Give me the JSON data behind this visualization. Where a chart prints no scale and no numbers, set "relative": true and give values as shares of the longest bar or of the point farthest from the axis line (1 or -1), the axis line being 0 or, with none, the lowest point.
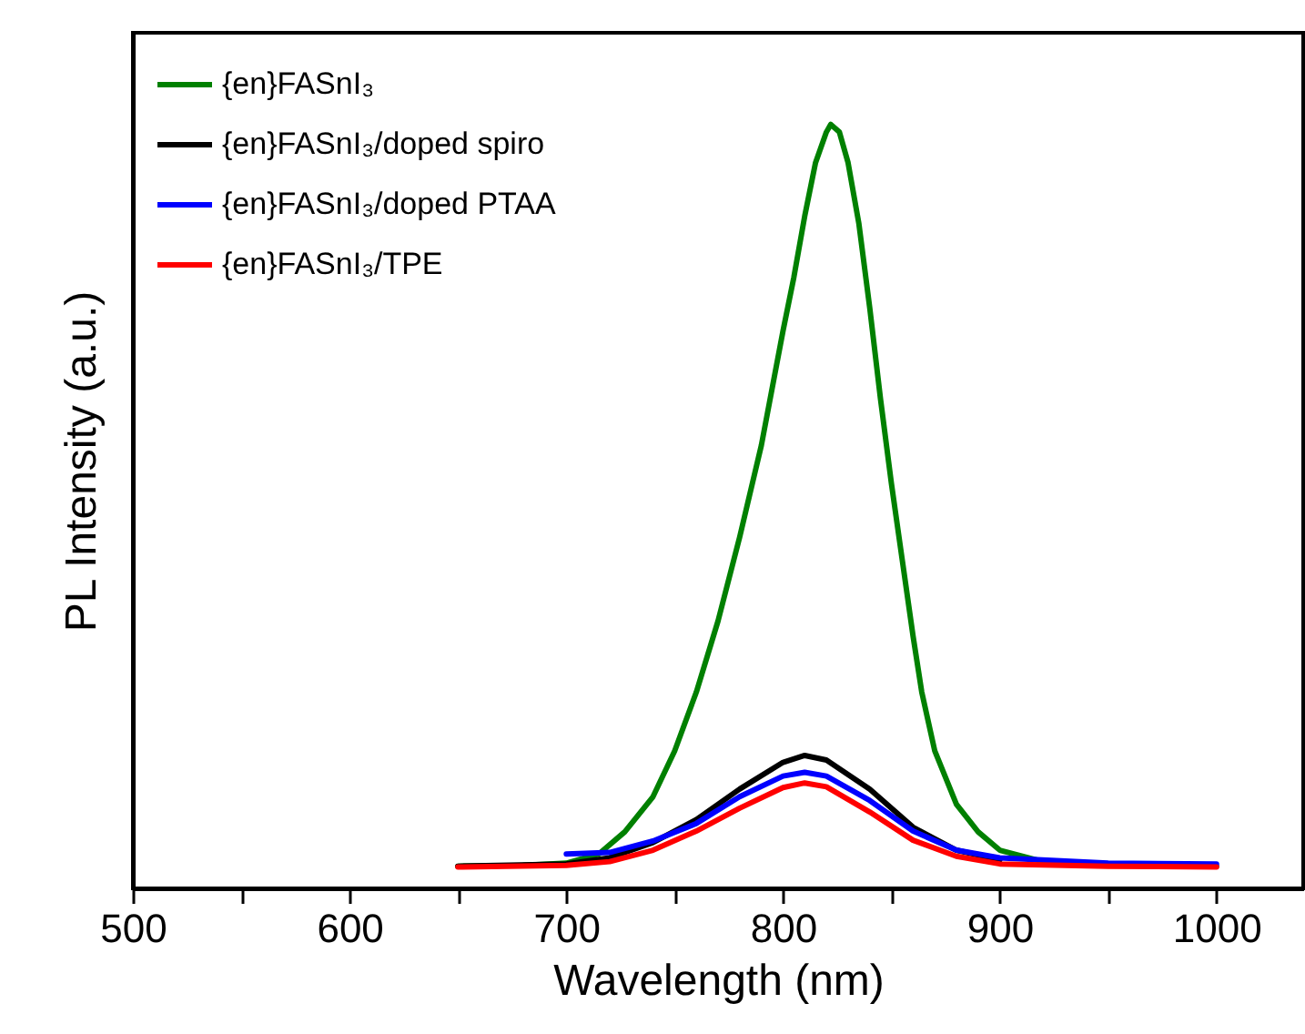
{
  "chart_data": {
    "type": "line",
    "relative": true,
    "xlabel": "Wavelength (nm)",
    "ylabel": "PL Intensity (a.u.)",
    "xlim": [
      500,
      1040
    ],
    "xticks": [
      500,
      {
        "value": 550,
        "label": null
      },
      600,
      {
        "value": 650,
        "label": null
      },
      700,
      {
        "value": 750,
        "label": null
      },
      800,
      {
        "value": 850,
        "label": null
      },
      900,
      {
        "value": 950,
        "label": null
      },
      1000
    ],
    "legend": "top left",
    "grid": false,
    "series": [
      {
        "name": "{en}FASnI₃",
        "color": "#008000",
        "x": [
          650,
          680,
          700,
          715,
          727,
          740,
          750,
          760,
          770,
          780,
          790,
          800,
          805,
          810,
          815,
          820,
          822,
          826,
          830,
          835,
          840,
          845,
          850,
          855,
          860,
          864,
          870,
          880,
          890,
          900,
          920,
          950,
          1000
        ],
        "values": [
          0.029,
          0.03,
          0.033,
          0.045,
          0.074,
          0.12,
          0.18,
          0.257,
          0.35,
          0.46,
          0.58,
          0.73,
          0.8,
          0.88,
          0.95,
          0.99,
          1.0,
          0.99,
          0.95,
          0.87,
          0.76,
          0.64,
          0.53,
          0.43,
          0.33,
          0.257,
          0.18,
          0.11,
          0.074,
          0.05,
          0.035,
          0.03,
          0.029
        ]
      },
      {
        "name": "{en}FASnI₃/doped spiro",
        "color": "#000000",
        "x": [
          650,
          700,
          720,
          740,
          760,
          780,
          800,
          810,
          820,
          840,
          860,
          880,
          900
        ],
        "values": [
          0.029,
          0.032,
          0.04,
          0.06,
          0.09,
          0.13,
          0.165,
          0.174,
          0.168,
          0.13,
          0.08,
          0.05,
          0.037
        ]
      },
      {
        "name": "{en}FASnI₃/doped PTAA",
        "color": "#0000ff",
        "x": [
          700,
          720,
          740,
          760,
          780,
          800,
          810,
          820,
          840,
          860,
          880,
          900,
          950,
          1000
        ],
        "values": [
          0.045,
          0.047,
          0.062,
          0.085,
          0.12,
          0.147,
          0.152,
          0.147,
          0.115,
          0.075,
          0.05,
          0.04,
          0.033,
          0.032
        ]
      },
      {
        "name": "{en}FASnI₃/TPE",
        "color": "#ff0000",
        "x": [
          650,
          700,
          720,
          740,
          760,
          780,
          800,
          810,
          820,
          840,
          860,
          880,
          900,
          950,
          1000
        ],
        "values": [
          0.028,
          0.03,
          0.035,
          0.05,
          0.075,
          0.105,
          0.132,
          0.138,
          0.133,
          0.1,
          0.063,
          0.042,
          0.032,
          0.029,
          0.028
        ]
      }
    ]
  }
}
